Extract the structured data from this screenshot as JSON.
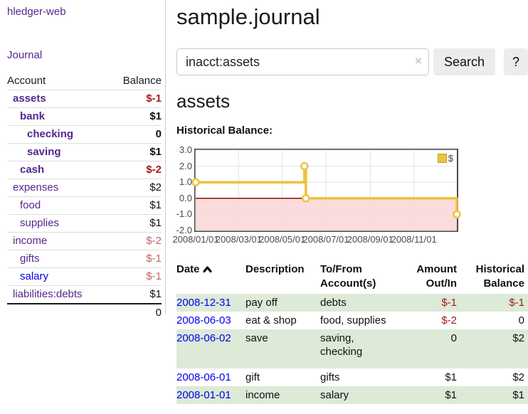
{
  "app": {
    "title": "hledger-web"
  },
  "sidebar": {
    "journal_label": "Journal",
    "accounts": {
      "col_account": "Account",
      "col_balance": "Balance",
      "rows": [
        {
          "name": "assets",
          "balance": "$-1",
          "level": 1,
          "bold": true,
          "tone": "negative",
          "visited": true
        },
        {
          "name": "bank",
          "balance": "$1",
          "level": 2,
          "bold": true,
          "tone": "normal",
          "visited": true
        },
        {
          "name": "checking",
          "balance": "0",
          "level": 3,
          "bold": true,
          "tone": "normal",
          "visited": true
        },
        {
          "name": "saving",
          "balance": "$1",
          "level": 3,
          "bold": true,
          "tone": "normal",
          "visited": true
        },
        {
          "name": "cash",
          "balance": "$-2",
          "level": 2,
          "bold": true,
          "tone": "negative",
          "visited": true
        },
        {
          "name": "expenses",
          "balance": "$2",
          "level": 1,
          "bold": false,
          "tone": "normal",
          "visited": true
        },
        {
          "name": "food",
          "balance": "$1",
          "level": 2,
          "bold": false,
          "tone": "normal",
          "visited": true
        },
        {
          "name": "supplies",
          "balance": "$1",
          "level": 2,
          "bold": false,
          "tone": "normal",
          "visited": true
        },
        {
          "name": "income",
          "balance": "$-2",
          "level": 1,
          "bold": false,
          "tone": "negative-muted",
          "visited": true
        },
        {
          "name": "gifts",
          "balance": "$-1",
          "level": 2,
          "bold": false,
          "tone": "negative-muted",
          "visited": true
        },
        {
          "name": "salary",
          "balance": "$-1",
          "level": 2,
          "bold": false,
          "tone": "negative-muted",
          "visited": false
        },
        {
          "name": "liabilities:debts",
          "balance": "$1",
          "level": 1,
          "bold": false,
          "tone": "normal",
          "visited": true
        }
      ],
      "total": "0"
    }
  },
  "main": {
    "title": "sample.journal",
    "search": {
      "value": "inacct:assets",
      "clear_glyph": "×",
      "button_label": "Search",
      "help_label": "?"
    },
    "account_heading": "assets",
    "chart_title": "Historical Balance:"
  },
  "chart_data": {
    "type": "line",
    "title": "Historical Balance",
    "legend": [
      {
        "label": "$",
        "color": "#EDC240"
      }
    ],
    "legend_position": "top-right",
    "grid": true,
    "x_domain": [
      "2008-01-01",
      "2008-12-31"
    ],
    "ylim": [
      -2,
      3
    ],
    "x_ticks": [
      {
        "label": "2008/01/01",
        "date": "2008-01-01"
      },
      {
        "label": "2008/03/01",
        "date": "2008-03-01"
      },
      {
        "label": "2008/05/01",
        "date": "2008-05-01"
      },
      {
        "label": "2008/07/01",
        "date": "2008-07-01"
      },
      {
        "label": "2008/09/01",
        "date": "2008-09-01"
      },
      {
        "label": "2008/11/01",
        "date": "2008-11-01"
      }
    ],
    "y_ticks": [
      {
        "label": "3.0",
        "value": 3
      },
      {
        "label": "2.0",
        "value": 2
      },
      {
        "label": "1.0",
        "value": 1
      },
      {
        "label": "0.0",
        "value": 0
      },
      {
        "label": "-1.0",
        "value": -1
      },
      {
        "label": "-2.0",
        "value": -2
      }
    ],
    "series": [
      {
        "name": "$",
        "step": true,
        "points": [
          {
            "date": "2008-01-01",
            "value": 1
          },
          {
            "date": "2008-06-01",
            "value": 2
          },
          {
            "date": "2008-06-03",
            "value": 0
          },
          {
            "date": "2008-12-31",
            "value": -1
          }
        ]
      }
    ],
    "colors": {
      "series": "#EDC240",
      "marker_fill": "#FFFFFF",
      "negative_region": "#FBDBDB",
      "zero_line": "#8F0D0D",
      "grid": "#E4E4E4",
      "border": "#4A4A4A"
    }
  },
  "register": {
    "headers": {
      "date": "Date",
      "sort_icon": "chevron-up",
      "description": "Description",
      "accounts": "To/From\nAccount(s)",
      "amount": "Amount\nOut/In",
      "balance": "Historical\nBalance"
    },
    "rows": [
      {
        "date": "2008-12-31",
        "description": "pay off",
        "accounts": "debts",
        "amount": "$-1",
        "amount_tone": "negative",
        "balance": "$-1",
        "balance_tone": "negative",
        "tall": false
      },
      {
        "date": "2008-06-03",
        "description": "eat & shop",
        "accounts": "food, supplies",
        "amount": "$-2",
        "amount_tone": "negative",
        "balance": "0",
        "balance_tone": "normal",
        "tall": false
      },
      {
        "date": "2008-06-02",
        "description": "save",
        "accounts": "saving,\nchecking",
        "amount": "0",
        "amount_tone": "normal",
        "balance": "$2",
        "balance_tone": "normal",
        "tall": true
      },
      {
        "date": "2008-06-01",
        "description": "gift",
        "accounts": "gifts",
        "amount": "$1",
        "amount_tone": "normal",
        "balance": "$2",
        "balance_tone": "normal",
        "tall": false
      },
      {
        "date": "2008-01-01",
        "description": "income",
        "accounts": "salary",
        "amount": "$1",
        "amount_tone": "normal",
        "balance": "$1",
        "balance_tone": "normal",
        "tall": false
      }
    ]
  }
}
